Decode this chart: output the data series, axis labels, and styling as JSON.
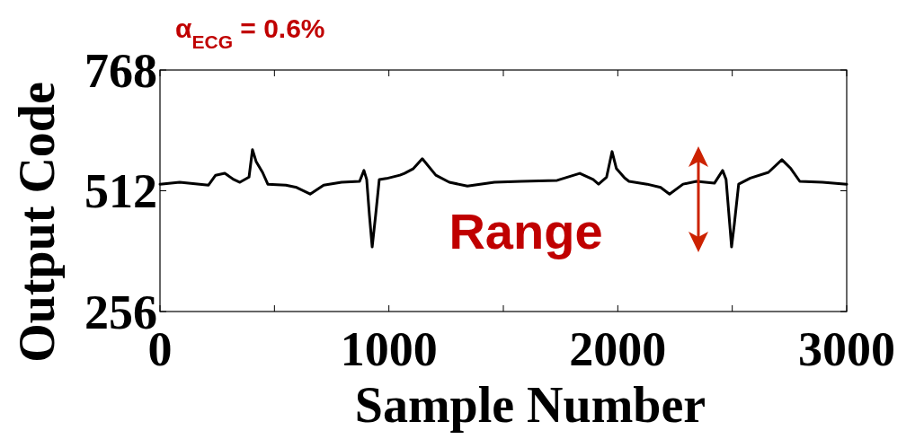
{
  "chart_data": {
    "type": "line",
    "xlabel": "Sample Number",
    "ylabel": "Output Code",
    "x": [
      0,
      86,
      212,
      243,
      283,
      322,
      349,
      389,
      404,
      420,
      448,
      471,
      550,
      597,
      656,
      715,
      793,
      872,
      891,
      903,
      915,
      927,
      942,
      958,
      989,
      1048,
      1068,
      1107,
      1146,
      1205,
      1264,
      1343,
      1461,
      1578,
      1735,
      1834,
      1892,
      1916,
      1951,
      1975,
      1994,
      2030,
      2049,
      2128,
      2187,
      2226,
      2285,
      2344,
      2422,
      2458,
      2473,
      2489,
      2497,
      2509,
      2528,
      2579,
      2658,
      2717,
      2756,
      2795,
      2894,
      3000
    ],
    "series": [
      {
        "color": "#000000",
        "values": [
          526,
          530,
          524,
          545,
          549,
          536,
          530,
          541,
          599,
          574,
          551,
          526,
          524,
          519,
          505,
          524,
          530,
          532,
          555,
          536,
          460,
          393,
          460,
          536,
          538,
          545,
          549,
          559,
          580,
          545,
          530,
          522,
          530,
          532,
          534,
          549,
          536,
          526,
          541,
          595,
          559,
          539,
          532,
          526,
          519,
          505,
          526,
          532,
          528,
          555,
          536,
          441,
          393,
          441,
          526,
          539,
          551,
          578,
          559,
          532,
          530,
          526
        ]
      }
    ],
    "xlim": [
      0,
      3000
    ],
    "ylim": [
      256,
      768
    ],
    "xticks": [
      0,
      {
        "value": 500,
        "label": null
      },
      1000,
      {
        "value": 1500,
        "label": null
      },
      2000,
      {
        "value": 2500,
        "label": null
      },
      3000
    ],
    "yticks": [
      256,
      512,
      768
    ],
    "annotations": [
      "α$_{ECG}$ = 0.6%",
      "Range"
    ],
    "grid": false
  }
}
